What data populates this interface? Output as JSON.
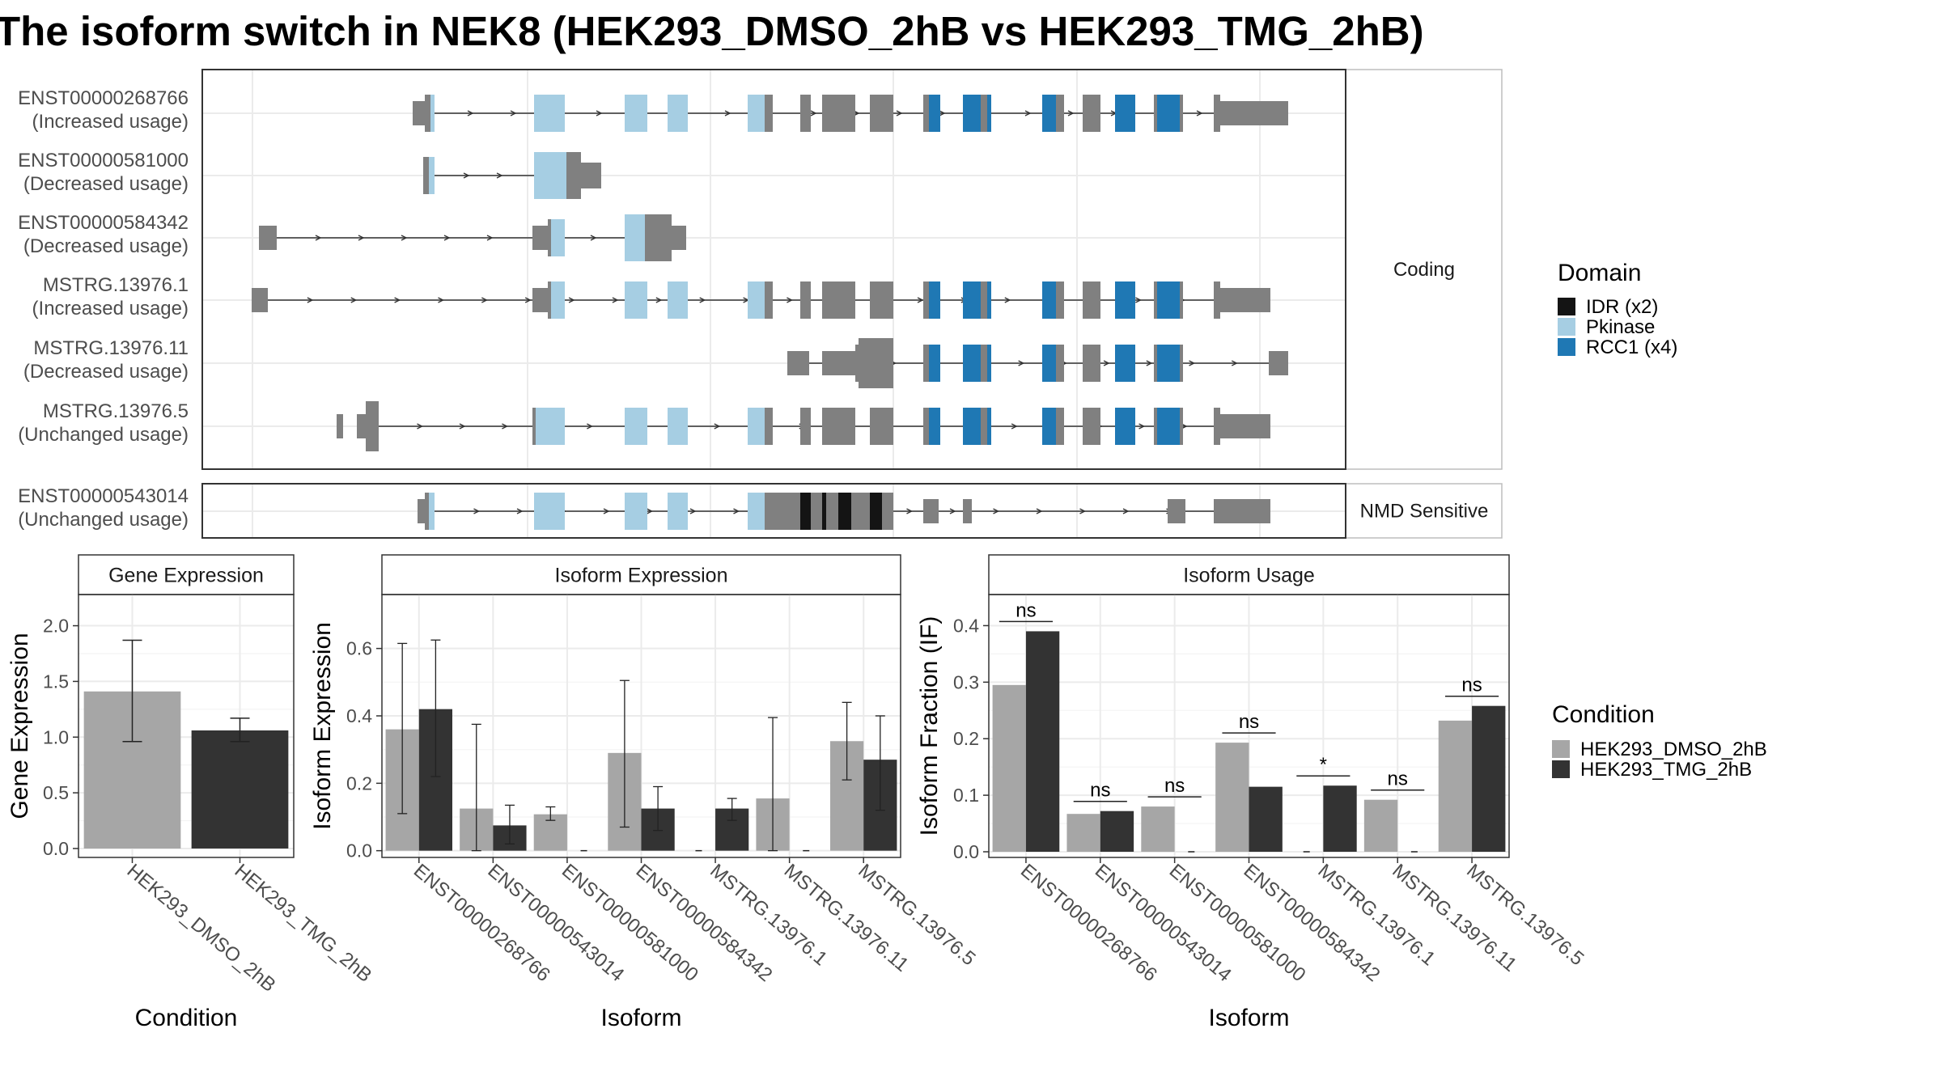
{
  "title": "The isoform switch in NEK8 (HEK293_DMSO_2hB vs HEK293_TMG_2hB)",
  "colors": {
    "exon_plain": "#808080",
    "IDR": "#141414",
    "Pkinase": "#a6cee3",
    "RCC1": "#1f78b4",
    "dmso": "#a6a6a6",
    "tmg": "#333333",
    "grid": "#ebebeb",
    "intron": "#333333"
  },
  "structure": {
    "coding_strip_label": "Coding",
    "nmd_strip_label": "NMD Sensitive",
    "transcripts": [
      {
        "id": "ENST00000268766",
        "usage": "(Increased usage)",
        "panel": "coding"
      },
      {
        "id": "ENST00000581000",
        "usage": "(Decreased usage)",
        "panel": "coding"
      },
      {
        "id": "ENST00000584342",
        "usage": "(Decreased usage)",
        "panel": "coding"
      },
      {
        "id": "MSTRG.13976.1",
        "usage": "(Increased usage)",
        "panel": "coding"
      },
      {
        "id": "MSTRG.13976.11",
        "usage": "(Decreased usage)",
        "panel": "coding"
      },
      {
        "id": "MSTRG.13976.5",
        "usage": "(Unchanged usage)",
        "panel": "coding"
      },
      {
        "id": "ENST00000543014",
        "usage": "(Unchanged usage)",
        "panel": "nmd"
      }
    ]
  },
  "domain_legend": {
    "title": "Domain",
    "items": [
      {
        "label": "IDR (x2)",
        "key": "IDR"
      },
      {
        "label": "Pkinase",
        "key": "Pkinase"
      },
      {
        "label": "RCC1 (x4)",
        "key": "RCC1"
      }
    ]
  },
  "condition_legend": {
    "title": "Condition",
    "items": [
      {
        "label": "HEK293_DMSO_2hB",
        "key": "dmso"
      },
      {
        "label": "HEK293_TMG_2hB",
        "key": "tmg"
      }
    ]
  },
  "chart_data": [
    {
      "type": "bar",
      "panel": "gene_expression",
      "title": "Gene Expression",
      "xlabel": "Condition",
      "ylabel": "Gene Expression",
      "categories": [
        "HEK293_DMSO_2hB",
        "HEK293_TMG_2hB"
      ],
      "values": [
        1.41,
        1.06
      ],
      "err_low": [
        0.96,
        0.96
      ],
      "err_high": [
        1.87,
        1.17
      ],
      "ylim": [
        -0.08,
        2.28
      ],
      "yticks": [
        "0.0",
        "0.5",
        "1.0",
        "1.5",
        "2.0"
      ],
      "grid": true
    },
    {
      "type": "bar",
      "panel": "isoform_expression",
      "title": "Isoform Expression",
      "xlabel": "Isoform",
      "ylabel": "Isoform Expression",
      "categories": [
        "ENST00000268766",
        "ENST00000543014",
        "ENST00000581000",
        "ENST00000584342",
        "MSTRG.13976.1",
        "MSTRG.13976.11",
        "MSTRG.13976.5"
      ],
      "series": [
        {
          "name": "HEK293_DMSO_2hB",
          "values": [
            0.36,
            0.125,
            0.108,
            0.29,
            0.0,
            0.155,
            0.325
          ],
          "err_low": [
            0.11,
            0.0,
            0.09,
            0.07,
            null,
            0.0,
            0.21
          ],
          "err_high": [
            0.615,
            0.375,
            0.13,
            0.505,
            null,
            0.395,
            0.44
          ]
        },
        {
          "name": "HEK293_TMG_2hB",
          "values": [
            0.42,
            0.075,
            0.0,
            0.125,
            0.125,
            0.0,
            0.27
          ],
          "err_low": [
            0.22,
            0.02,
            null,
            0.06,
            0.09,
            null,
            0.12
          ],
          "err_high": [
            0.625,
            0.135,
            null,
            0.19,
            0.155,
            null,
            0.4
          ]
        }
      ],
      "ylim": [
        -0.02,
        0.76
      ],
      "yticks": [
        "0.0",
        "0.2",
        "0.4",
        "0.6"
      ],
      "grid": true
    },
    {
      "type": "bar",
      "panel": "isoform_usage",
      "title": "Isoform Usage",
      "xlabel": "Isoform",
      "ylabel": "Isoform Fraction (IF)",
      "categories": [
        "ENST00000268766",
        "ENST00000543014",
        "ENST00000581000",
        "ENST00000584342",
        "MSTRG.13976.1",
        "MSTRG.13976.11",
        "MSTRG.13976.5"
      ],
      "series": [
        {
          "name": "HEK293_DMSO_2hB",
          "values": [
            0.295,
            0.067,
            0.08,
            0.193,
            0.0,
            0.092,
            0.232
          ]
        },
        {
          "name": "HEK293_TMG_2hB",
          "values": [
            0.39,
            0.072,
            0.0,
            0.115,
            0.117,
            0.0,
            0.258
          ]
        }
      ],
      "significance": [
        "ns",
        "ns",
        "ns",
        "ns",
        "*",
        "ns",
        "ns"
      ],
      "ylim": [
        -0.01,
        0.455
      ],
      "yticks": [
        "0.0",
        "0.1",
        "0.2",
        "0.3",
        "0.4"
      ],
      "grid": true
    }
  ]
}
